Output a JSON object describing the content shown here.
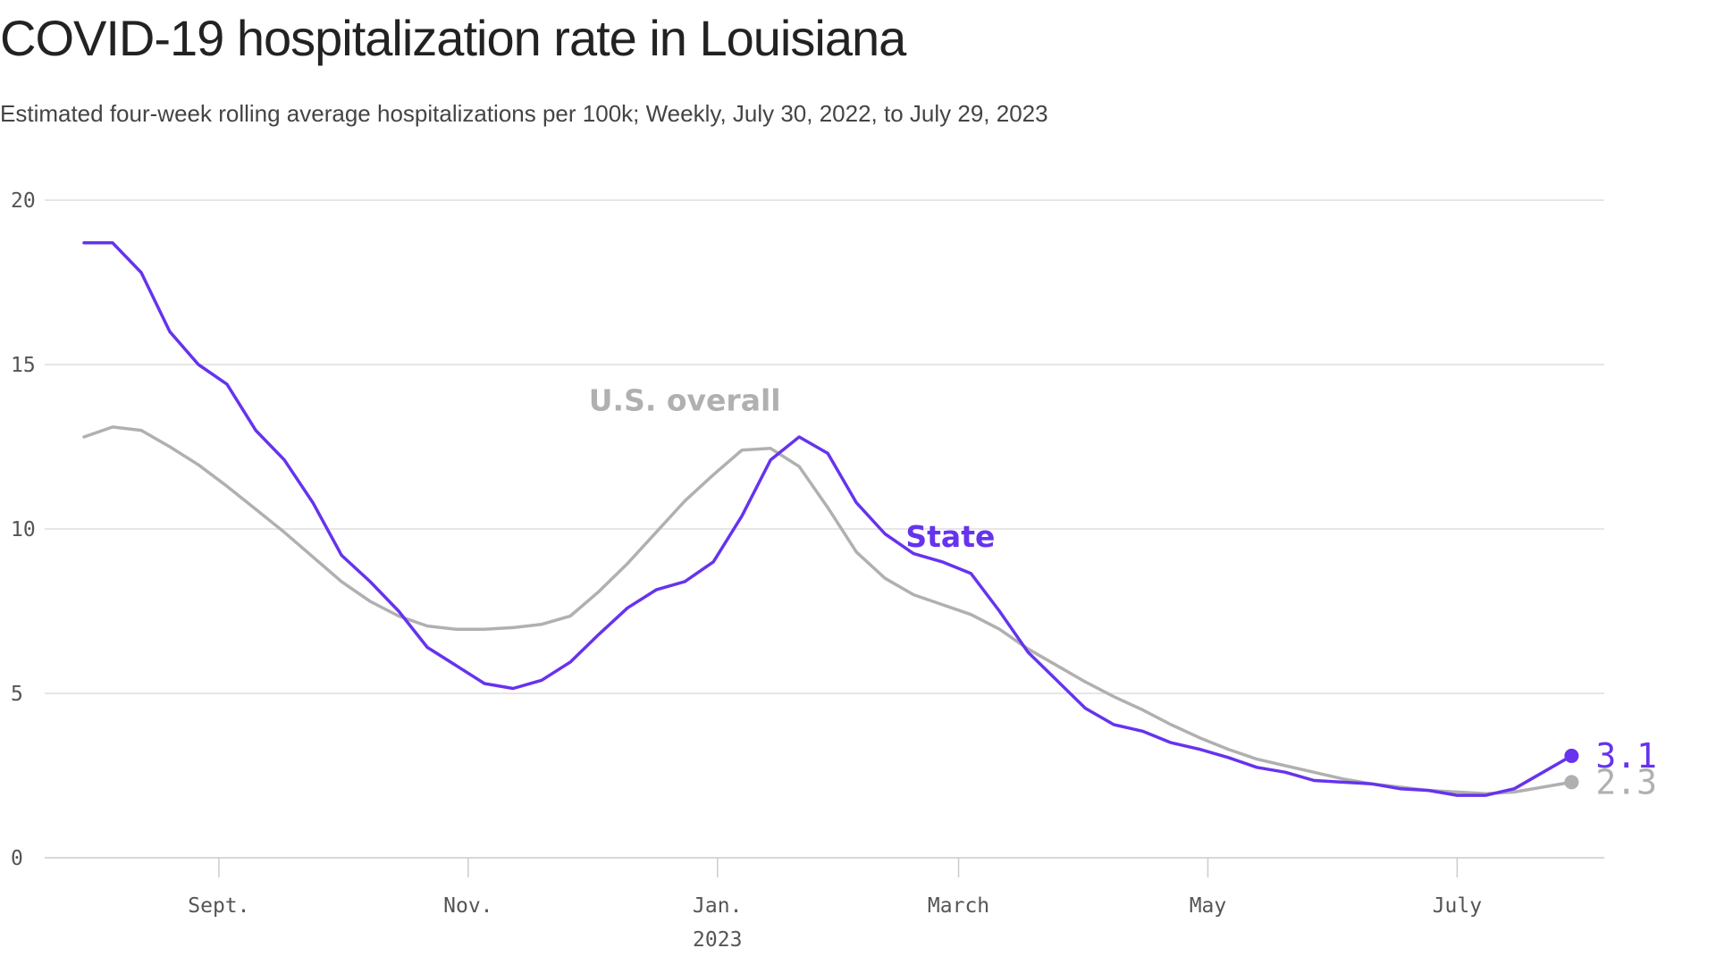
{
  "title": "COVID-19 hospitalization rate in Louisiana",
  "subtitle": "Estimated four-week rolling average hospitalizations per 100k; Weekly, July 30, 2022, to July 29, 2023",
  "colors": {
    "state": "#6633ee",
    "us": "#b0b0b0",
    "grid": "#dddddd",
    "axis": "#cccccc"
  },
  "chart_data": {
    "type": "line",
    "title": "COVID-19 hospitalization rate in Louisiana",
    "subtitle": "Estimated four-week rolling average hospitalizations per 100k; Weekly, July 30, 2022, to July 29, 2023",
    "xlabel": "",
    "ylabel": "",
    "ylim": [
      0,
      20
    ],
    "xlim": [
      "2022-07-23",
      "2023-08-06"
    ],
    "grid": true,
    "y_ticks": [
      0,
      5,
      10,
      15,
      20
    ],
    "x_ticks": [
      {
        "date": "2022-09-01",
        "label": "Sept."
      },
      {
        "date": "2022-11-01",
        "label": "Nov."
      },
      {
        "date": "2023-01-01",
        "label": "Jan.",
        "sublabel": "2023"
      },
      {
        "date": "2023-03-01",
        "label": "March"
      },
      {
        "date": "2023-05-01",
        "label": "May"
      },
      {
        "date": "2023-07-01",
        "label": "July"
      }
    ],
    "x": [
      "2022-07-30",
      "2022-08-06",
      "2022-08-13",
      "2022-08-20",
      "2022-08-27",
      "2022-09-03",
      "2022-09-10",
      "2022-09-17",
      "2022-09-24",
      "2022-10-01",
      "2022-10-08",
      "2022-10-15",
      "2022-10-22",
      "2022-10-29",
      "2022-11-05",
      "2022-11-12",
      "2022-11-19",
      "2022-11-26",
      "2022-12-03",
      "2022-12-10",
      "2022-12-17",
      "2022-12-24",
      "2022-12-31",
      "2023-01-07",
      "2023-01-14",
      "2023-01-21",
      "2023-01-28",
      "2023-02-04",
      "2023-02-11",
      "2023-02-18",
      "2023-02-25",
      "2023-03-04",
      "2023-03-11",
      "2023-03-18",
      "2023-03-25",
      "2023-04-01",
      "2023-04-08",
      "2023-04-15",
      "2023-04-22",
      "2023-04-29",
      "2023-05-06",
      "2023-05-13",
      "2023-05-20",
      "2023-05-27",
      "2023-06-03",
      "2023-06-10",
      "2023-06-17",
      "2023-06-24",
      "2023-07-01",
      "2023-07-08",
      "2023-07-15",
      "2023-07-22",
      "2023-07-29"
    ],
    "series": [
      {
        "name": "U.S. overall",
        "color": "#b0b0b0",
        "values": [
          12.8,
          13.1,
          13.0,
          12.5,
          11.95,
          11.3,
          10.6,
          9.9,
          9.15,
          8.4,
          7.8,
          7.35,
          7.05,
          6.95,
          6.95,
          7.0,
          7.1,
          7.35,
          8.1,
          8.95,
          9.9,
          10.85,
          11.65,
          12.4,
          12.45,
          11.9,
          10.65,
          9.3,
          8.5,
          8.0,
          7.7,
          7.4,
          6.95,
          6.35,
          5.85,
          5.35,
          4.9,
          4.5,
          4.05,
          3.65,
          3.3,
          3.0,
          2.8,
          2.6,
          2.4,
          2.25,
          2.15,
          2.05,
          2.0,
          1.95,
          2.0,
          2.15,
          2.3
        ]
      },
      {
        "name": "State",
        "color": "#6633ee",
        "values": [
          18.7,
          18.7,
          17.8,
          16.0,
          15.0,
          14.4,
          13.0,
          12.1,
          10.8,
          9.2,
          8.4,
          7.5,
          6.4,
          5.85,
          5.3,
          5.15,
          5.4,
          5.95,
          6.8,
          7.6,
          8.15,
          8.4,
          9.0,
          10.4,
          12.1,
          12.8,
          12.3,
          10.8,
          9.85,
          9.25,
          9.0,
          8.65,
          7.5,
          6.25,
          5.4,
          4.55,
          4.05,
          3.85,
          3.5,
          3.3,
          3.05,
          2.75,
          2.6,
          2.35,
          2.3,
          2.25,
          2.1,
          2.05,
          1.9,
          1.9,
          2.1,
          2.6,
          3.1
        ]
      }
    ],
    "end_labels": {
      "State": "3.1",
      "U.S. overall": "2.3"
    }
  }
}
